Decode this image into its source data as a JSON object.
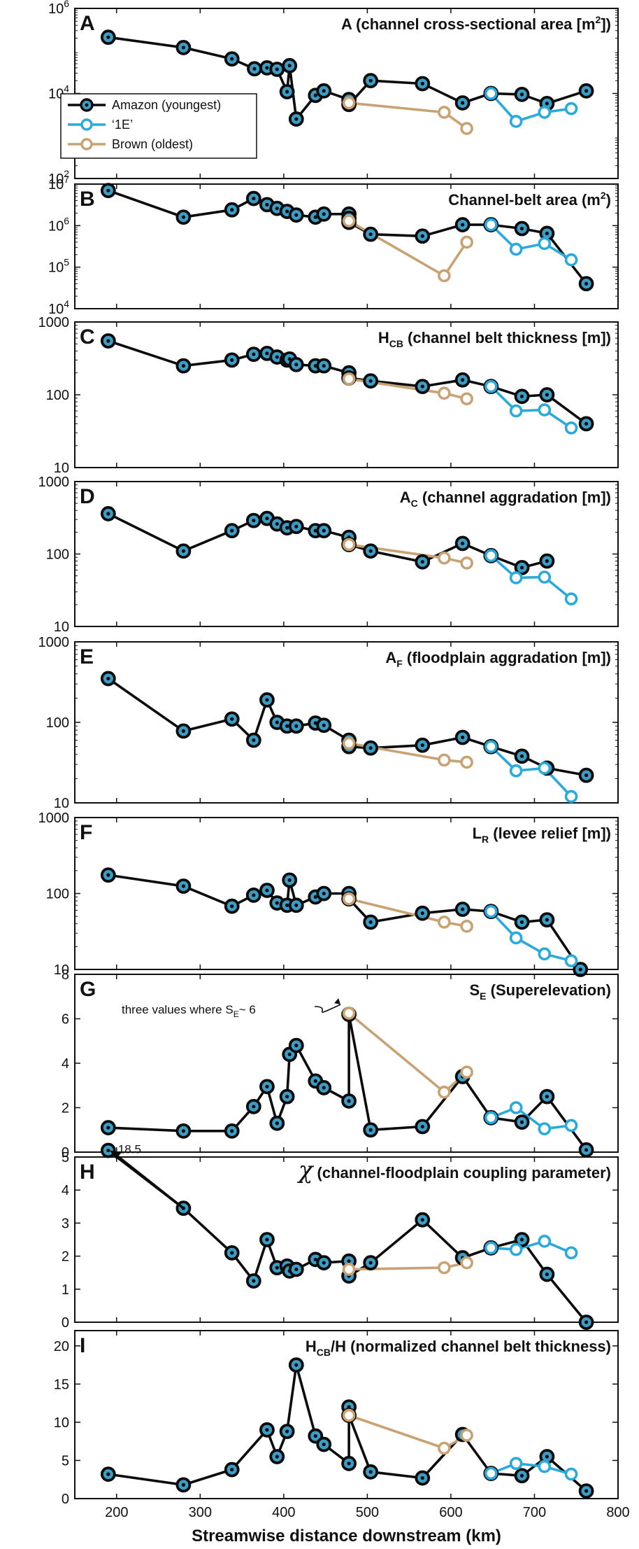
{
  "colors": {
    "amazon": "#0b0b0b",
    "e1": "#2aa9dc",
    "brown": "#c9a274",
    "dot": "#3d9cc4",
    "axis": "#111111"
  },
  "legend": {
    "amazon": "Amazon (youngest)",
    "e1": "‘1E’",
    "brown": "Brown (oldest)"
  },
  "annotations": {
    "g_note": "three values where S",
    "g_note_sub": "E",
    "g_note_tail": "~ 6",
    "h_label": "18.5"
  },
  "x_axis": {
    "label": "Streamwise distance downstream (km)",
    "ticks": [
      "200",
      "300",
      "400",
      "500",
      "600",
      "700",
      "800"
    ],
    "range": [
      150,
      800
    ]
  },
  "chart_data": [
    {
      "type": "line",
      "panel": "A",
      "title": "A (channel cross-sectional area [m",
      "title_sup": "2",
      "title_end": "])",
      "yscale": "log",
      "ylim": [
        100,
        1000000
      ],
      "y_tick_labels": [
        {
          "v": 100,
          "b": "10",
          "e": "2"
        },
        {
          "v": 10000,
          "b": "10",
          "e": "4"
        },
        {
          "v": 1000000,
          "b": "10",
          "e": "6"
        }
      ],
      "legend": true,
      "series": [
        {
          "name": "Amazon (youngest)",
          "x": [
            190,
            280,
            338,
            365,
            380,
            392,
            404,
            407,
            415,
            438,
            448,
            478,
            478,
            504,
            566,
            614,
            648,
            685,
            715,
            762
          ],
          "y": [
            210000,
            120000,
            65000,
            38000,
            40000,
            37000,
            11000,
            45000,
            2500,
            9000,
            11500,
            7200,
            5500,
            20000,
            17000,
            6000,
            10000,
            9500,
            5800,
            11500
          ]
        },
        {
          "name": "‘1E’",
          "x": [
            648,
            678,
            712,
            744
          ],
          "y": [
            10000,
            2200,
            3600,
            4400
          ]
        },
        {
          "name": "Brown (oldest)",
          "x": [
            478,
            592,
            619
          ],
          "y": [
            6000,
            3600,
            1500
          ]
        }
      ]
    },
    {
      "type": "line",
      "panel": "B",
      "title": "Channel-belt area (m",
      "title_sup": "2",
      "title_end": ")",
      "yscale": "log",
      "ylim": [
        10000,
        10000000
      ],
      "y_tick_labels": [
        {
          "v": 10000,
          "b": "10",
          "e": "4"
        },
        {
          "v": 100000,
          "b": "10",
          "e": "5"
        },
        {
          "v": 1000000,
          "b": "10",
          "e": "6"
        },
        {
          "v": 10000000,
          "b": "10",
          "e": "7"
        }
      ],
      "series": [
        {
          "name": "Amazon (youngest)",
          "x": [
            190,
            280,
            338,
            364,
            380,
            392,
            404,
            415,
            438,
            448,
            478,
            478,
            478,
            504,
            566,
            614,
            648,
            685,
            715,
            762
          ],
          "y": [
            7000000,
            1600000,
            2400000,
            4500000,
            3200000,
            2600000,
            2200000,
            1800000,
            1600000,
            1900000,
            1900000,
            1500000,
            1200000,
            620000,
            560000,
            1050000,
            1050000,
            850000,
            650000,
            40000
          ]
        },
        {
          "name": "‘1E’",
          "x": [
            648,
            678,
            712,
            744
          ],
          "y": [
            1050000,
            270000,
            370000,
            150000
          ]
        },
        {
          "name": "Brown (oldest)",
          "x": [
            478,
            592,
            619
          ],
          "y": [
            1300000,
            62000,
            400000
          ]
        }
      ]
    },
    {
      "type": "line",
      "panel": "C",
      "title": "H",
      "title_sub": "CB",
      "title_end": " (channel belt thickness [m])",
      "yscale": "log",
      "ylim": [
        10,
        1000
      ],
      "y_tick_labels": [
        {
          "v": 10,
          "t": "10"
        },
        {
          "v": 100,
          "t": "100"
        },
        {
          "v": 1000,
          "t": "1000"
        }
      ],
      "series": [
        {
          "name": "Amazon (youngest)",
          "x": [
            190,
            280,
            338,
            364,
            380,
            392,
            404,
            407,
            415,
            438,
            448,
            478,
            478,
            504,
            566,
            614,
            648,
            685,
            715,
            762
          ],
          "y": [
            550,
            250,
            300,
            360,
            370,
            330,
            300,
            310,
            260,
            250,
            250,
            200,
            170,
            155,
            130,
            160,
            130,
            95,
            100,
            40
          ]
        },
        {
          "name": "‘1E’",
          "x": [
            648,
            678,
            712,
            744
          ],
          "y": [
            130,
            60,
            62,
            35
          ]
        },
        {
          "name": "Brown (oldest)",
          "x": [
            478,
            592,
            619
          ],
          "y": [
            165,
            105,
            88
          ]
        }
      ]
    },
    {
      "type": "line",
      "panel": "D",
      "title": "A",
      "title_sub": "C",
      "title_end": " (channel aggradation [m])",
      "yscale": "log",
      "ylim": [
        10,
        1000
      ],
      "y_tick_labels": [
        {
          "v": 10,
          "t": "10"
        },
        {
          "v": 100,
          "t": "100"
        },
        {
          "v": 1000,
          "t": "1000"
        }
      ],
      "series": [
        {
          "name": "Amazon (youngest)",
          "x": [
            190,
            280,
            338,
            364,
            380,
            392,
            404,
            415,
            438,
            448,
            478,
            478,
            504,
            566,
            614,
            648,
            685,
            715
          ],
          "y": [
            360,
            110,
            210,
            290,
            310,
            260,
            230,
            240,
            210,
            210,
            170,
            135,
            110,
            78,
            140,
            95,
            65,
            80
          ]
        },
        {
          "name": "‘1E’",
          "x": [
            648,
            678,
            712,
            744
          ],
          "y": [
            95,
            47,
            48,
            24
          ]
        },
        {
          "name": "Brown (oldest)",
          "x": [
            478,
            592,
            619
          ],
          "y": [
            135,
            88,
            75
          ]
        }
      ]
    },
    {
      "type": "line",
      "panel": "E",
      "title": "A",
      "title_sub": "F",
      "title_end": " (floodplain aggradation [m])",
      "yscale": "log",
      "ylim": [
        10,
        1000
      ],
      "y_tick_labels": [
        {
          "v": 10,
          "t": "10"
        },
        {
          "v": 100,
          "t": "100"
        },
        {
          "v": 1000,
          "t": "1000"
        }
      ],
      "series": [
        {
          "name": "Amazon (youngest)",
          "x": [
            190,
            280,
            338,
            364,
            380,
            392,
            404,
            415,
            438,
            448,
            478,
            478,
            504,
            566,
            614,
            648,
            685,
            715,
            762
          ],
          "y": [
            350,
            78,
            110,
            60,
            190,
            100,
            90,
            90,
            98,
            92,
            60,
            50,
            48,
            52,
            65,
            50,
            38,
            27,
            22
          ]
        },
        {
          "name": "‘1E’",
          "x": [
            648,
            678,
            712,
            744
          ],
          "y": [
            50,
            25,
            27,
            12
          ]
        },
        {
          "name": "Brown (oldest)",
          "x": [
            478,
            592,
            619
          ],
          "y": [
            55,
            34,
            32
          ]
        }
      ]
    },
    {
      "type": "line",
      "panel": "F",
      "title": "L",
      "title_sub": "R",
      "title_end": " (levee relief [m])",
      "yscale": "log",
      "ylim": [
        10,
        1000
      ],
      "y_tick_labels": [
        {
          "v": 10,
          "t": "10"
        },
        {
          "v": 100,
          "t": "100"
        },
        {
          "v": 1000,
          "t": "1000"
        }
      ],
      "series": [
        {
          "name": "Amazon (youngest)",
          "x": [
            190,
            280,
            338,
            364,
            380,
            392,
            404,
            407,
            415,
            438,
            448,
            478,
            478,
            504,
            566,
            614,
            648,
            685,
            715,
            755
          ],
          "y": [
            175,
            125,
            68,
            95,
            110,
            75,
            70,
            150,
            70,
            90,
            100,
            100,
            85,
            42,
            55,
            62,
            58,
            42,
            45,
            10
          ]
        },
        {
          "name": "‘1E’",
          "x": [
            648,
            678,
            712,
            744
          ],
          "y": [
            58,
            26,
            16,
            13
          ]
        },
        {
          "name": "Brown (oldest)",
          "x": [
            478,
            592,
            619
          ],
          "y": [
            85,
            42,
            37
          ]
        }
      ]
    },
    {
      "type": "line",
      "panel": "G",
      "title": "S",
      "title_sub": "E",
      "title_end": " (Superelevation)",
      "yscale": "linear",
      "ylim": [
        0,
        8
      ],
      "y_tick_labels": [
        {
          "v": 0,
          "t": "0"
        },
        {
          "v": 2,
          "t": "2"
        },
        {
          "v": 4,
          "t": "4"
        },
        {
          "v": 6,
          "t": "6"
        },
        {
          "v": 8,
          "t": "8"
        }
      ],
      "series": [
        {
          "name": "Amazon (youngest)",
          "x": [
            190,
            280,
            338,
            364,
            380,
            392,
            404,
            407,
            415,
            438,
            448,
            478,
            478,
            504,
            566,
            614,
            648,
            685,
            715,
            762
          ],
          "y": [
            1.1,
            0.95,
            0.95,
            2.05,
            2.95,
            1.3,
            2.5,
            4.4,
            4.8,
            3.2,
            2.9,
            2.3,
            6.2,
            1.0,
            1.15,
            3.4,
            1.55,
            1.35,
            2.5,
            0.1
          ]
        },
        {
          "name": "‘1E’",
          "x": [
            648,
            678,
            712,
            744
          ],
          "y": [
            1.55,
            2.0,
            1.05,
            1.2
          ]
        },
        {
          "name": "Brown (oldest)",
          "x": [
            478,
            592,
            619
          ],
          "y": [
            6.25,
            2.7,
            3.6
          ]
        }
      ]
    },
    {
      "type": "line",
      "panel": "H",
      "title": "(channel-floodplain coupling parameter)",
      "title_symbol": "χ",
      "yscale": "linear",
      "ylim": [
        0,
        5
      ],
      "y_tick_labels": [
        {
          "v": 0,
          "t": "0"
        },
        {
          "v": 1,
          "t": "1"
        },
        {
          "v": 2,
          "t": "2"
        },
        {
          "v": 3,
          "t": "3"
        },
        {
          "v": 4,
          "t": "4"
        },
        {
          "v": 5,
          "t": "5"
        }
      ],
      "series": [
        {
          "name": "Amazon (youngest)",
          "x": [
            190,
            280,
            338,
            364,
            380,
            392,
            404,
            407,
            415,
            438,
            448,
            478,
            478,
            504,
            566,
            614,
            648,
            685,
            715,
            762
          ],
          "y": [
            5.2,
            3.45,
            2.1,
            1.25,
            2.5,
            1.65,
            1.7,
            1.55,
            1.6,
            1.9,
            1.8,
            1.85,
            1.4,
            1.8,
            3.1,
            1.95,
            2.25,
            2.5,
            1.45,
            0
          ]
        },
        {
          "name": "‘1E’",
          "x": [
            648,
            678,
            712,
            744
          ],
          "y": [
            2.25,
            2.2,
            2.45,
            2.1
          ]
        },
        {
          "name": "Brown (oldest)",
          "x": [
            478,
            592,
            619
          ],
          "y": [
            1.6,
            1.65,
            1.8
          ]
        }
      ]
    },
    {
      "type": "line",
      "panel": "I",
      "title": "H",
      "title_sub": "CB",
      "title_end": "/H (normalized channel belt thickness)",
      "yscale": "linear",
      "ylim": [
        0,
        22
      ],
      "y_tick_labels": [
        {
          "v": 0,
          "t": "0"
        },
        {
          "v": 5,
          "t": "5"
        },
        {
          "v": 10,
          "t": "10"
        },
        {
          "v": 15,
          "t": "15"
        },
        {
          "v": 20,
          "t": "20"
        }
      ],
      "series": [
        {
          "name": "Amazon (youngest)",
          "x": [
            190,
            280,
            338,
            380,
            392,
            404,
            415,
            438,
            448,
            478,
            478,
            478,
            504,
            566,
            614,
            648,
            685,
            715,
            762
          ],
          "y": [
            3.2,
            1.8,
            3.8,
            9.0,
            5.5,
            8.8,
            17.5,
            8.2,
            7.1,
            4.6,
            12.0,
            10.9,
            3.5,
            2.7,
            8.4,
            3.3,
            3.0,
            5.5,
            1.0
          ]
        },
        {
          "name": "‘1E’",
          "x": [
            648,
            678,
            712,
            744
          ],
          "y": [
            3.3,
            4.6,
            4.2,
            3.2
          ]
        },
        {
          "name": "Brown (oldest)",
          "x": [
            478,
            592,
            619
          ],
          "y": [
            10.9,
            6.6,
            8.3
          ]
        }
      ]
    }
  ]
}
